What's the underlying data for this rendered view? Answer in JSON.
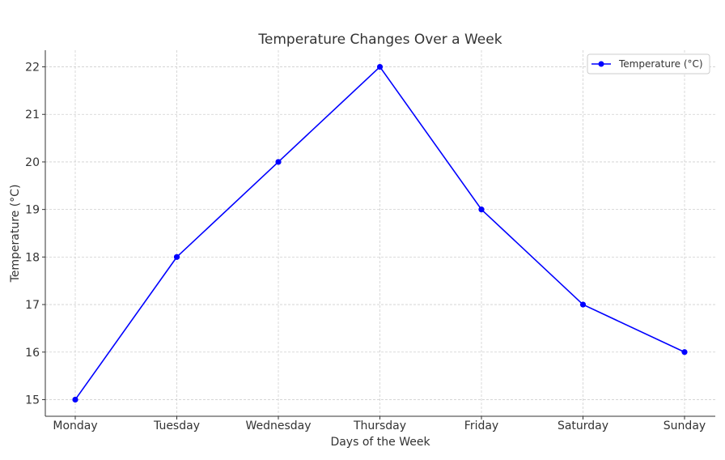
{
  "chart_data": {
    "type": "line",
    "title": "Temperature Changes Over a Week",
    "xlabel": "Days of the Week",
    "ylabel": "Temperature (°C)",
    "categories": [
      "Monday",
      "Tuesday",
      "Wednesday",
      "Thursday",
      "Friday",
      "Saturday",
      "Sunday"
    ],
    "ylim": [
      14.65,
      22.35
    ],
    "yticks": [
      15,
      16,
      17,
      18,
      19,
      20,
      21,
      22
    ],
    "grid": true,
    "legend_position": "top-right",
    "series": [
      {
        "name": "Temperature (°C)",
        "color": "#0000ff",
        "marker": "circle",
        "values": [
          15,
          18,
          20,
          22,
          19,
          17,
          16
        ]
      }
    ]
  }
}
